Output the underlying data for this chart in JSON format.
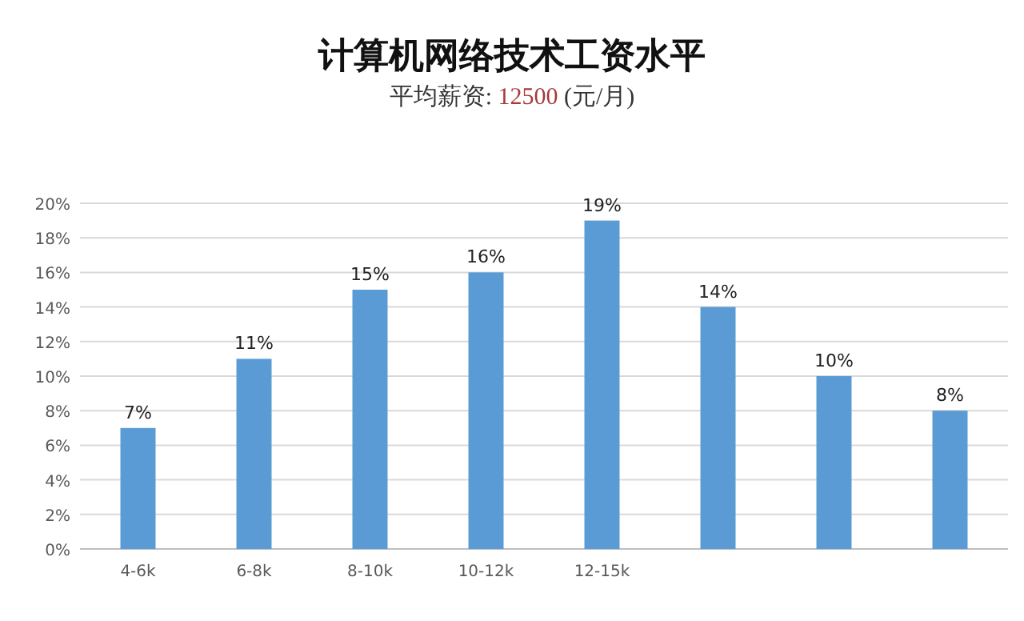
{
  "chart_data": {
    "type": "bar",
    "title": "计算机网络技术工资水平",
    "subtitle": "平均薪资:  12500  (元/月)",
    "categories": [
      "4-6k",
      "6-8k",
      "8-10k",
      "10-12k",
      "12-15k",
      null,
      null,
      null
    ],
    "values": [
      7,
      11,
      15,
      16,
      19,
      14,
      10,
      8
    ],
    "color": "#5b9bd5",
    "ylim": [
      0,
      20
    ],
    "yticks": [
      {
        "value": 0,
        "label": "0%"
      },
      {
        "value": 2,
        "label": "2%"
      },
      {
        "value": 4,
        "label": "4%"
      },
      {
        "value": 6,
        "label": "6%"
      },
      {
        "value": 8,
        "label": "8%"
      },
      {
        "value": 10,
        "label": "10%"
      },
      {
        "value": 12,
        "label": "12%"
      },
      {
        "value": 14,
        "label": "14%"
      },
      {
        "value": 16,
        "label": "16%"
      },
      {
        "value": 18,
        "label": "18%"
      },
      {
        "value": 20,
        "label": "20%"
      }
    ],
    "value_labels": [
      "7%",
      "11%",
      "15%",
      "16%",
      "19%",
      "14%",
      "10%",
      "8%"
    ],
    "grid": "y"
  }
}
